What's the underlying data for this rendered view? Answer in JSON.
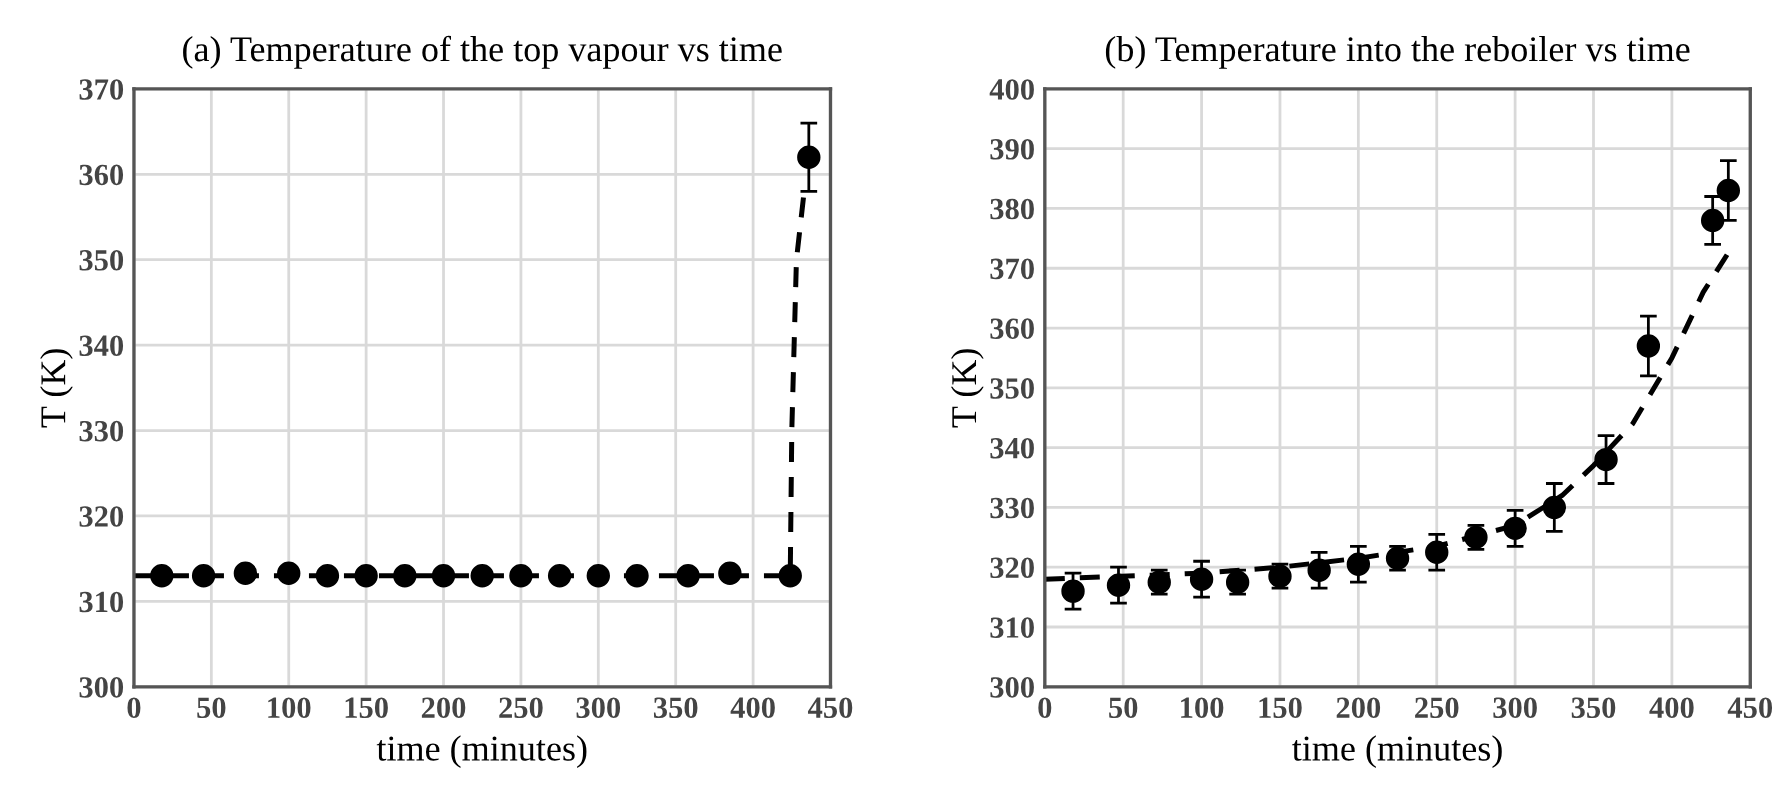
{
  "chart_data": [
    {
      "type": "scatter",
      "title": "(a) Temperature of the top vapour vs time",
      "xlabel": "time (minutes)",
      "ylabel": "T (K)",
      "xlim": [
        0,
        450
      ],
      "xticks": [
        0,
        50,
        100,
        150,
        200,
        250,
        300,
        350,
        400,
        450
      ],
      "ylim": [
        300,
        370
      ],
      "yticks": [
        300,
        310,
        320,
        330,
        340,
        350,
        360,
        370
      ],
      "grid": true,
      "series": [
        {
          "color": "#000000",
          "marker": "circle",
          "x": [
            18,
            45,
            72,
            100,
            125,
            150,
            175,
            200,
            225,
            250,
            275,
            300,
            325,
            358,
            385,
            424,
            436
          ],
          "values": [
            313,
            313,
            313.3,
            313.3,
            313,
            313,
            313,
            313,
            313,
            313,
            313,
            313,
            313,
            313,
            313.3,
            313,
            362
          ],
          "errors": [
            null,
            null,
            null,
            null,
            null,
            null,
            null,
            null,
            null,
            null,
            null,
            null,
            null,
            null,
            null,
            null,
            4
          ]
        },
        {
          "type": "line",
          "color": "#000000",
          "line_style": "dashed",
          "marker": "none",
          "x": [
            0,
            424,
            425,
            428,
            433
          ],
          "values": [
            313,
            313,
            330,
            350,
            358
          ]
        }
      ]
    },
    {
      "type": "scatter",
      "title": "(b) Temperature into the reboiler vs time",
      "xlabel": "time (minutes)",
      "ylabel": "T (K)",
      "xlim": [
        0,
        450
      ],
      "xticks": [
        0,
        50,
        100,
        150,
        200,
        250,
        300,
        350,
        400,
        450
      ],
      "ylim": [
        300,
        400
      ],
      "yticks": [
        300,
        310,
        320,
        330,
        340,
        350,
        360,
        370,
        380,
        390,
        400
      ],
      "grid": true,
      "series": [
        {
          "color": "#000000",
          "marker": "circle",
          "x": [
            18,
            47,
            73,
            100,
            123,
            150,
            175,
            200,
            225,
            250,
            275,
            300,
            325,
            358,
            385,
            426,
            436
          ],
          "values": [
            316,
            317,
            317.5,
            318,
            317.5,
            318.5,
            319.5,
            320.5,
            321.5,
            322.5,
            325,
            326.5,
            330,
            338,
            357,
            378,
            383
          ],
          "errors": [
            3,
            3,
            2,
            3,
            2,
            2,
            3,
            3,
            2,
            3,
            2,
            3,
            4,
            4,
            5,
            4,
            5
          ]
        },
        {
          "type": "line",
          "color": "#000000",
          "line_style": "dashed",
          "marker": "none",
          "x": [
            0,
            100,
            150,
            200,
            250,
            300,
            330,
            350,
            375,
            400,
            420,
            437
          ],
          "values": [
            318,
            319,
            320,
            321.5,
            323.5,
            327,
            332,
            337,
            344,
            355,
            366,
            373
          ]
        }
      ]
    }
  ]
}
